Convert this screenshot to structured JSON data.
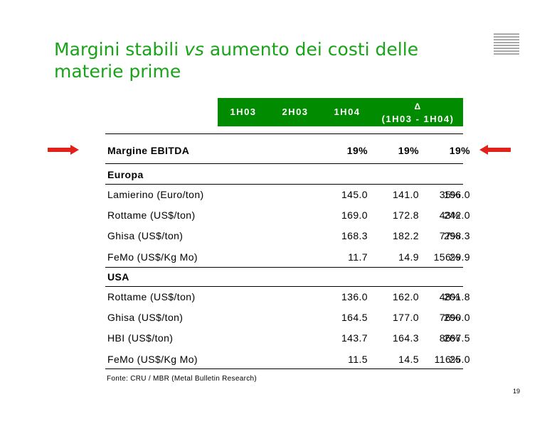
{
  "slide": {
    "title_part1": "Margini stabili ",
    "title_vs": "vs",
    "title_part2": " aumento dei costi delle materie prime",
    "page_number": "19",
    "source": "Fonte: CRU / MBR (Metal Bulletin Research)"
  },
  "table": {
    "headers": [
      "1H03",
      "2H03",
      "1H04"
    ],
    "delta_symbol": "Δ",
    "delta_range": "(1H03 - 1H04)",
    "ebitda": {
      "label": "Margine EBITDA",
      "values": [
        "19%",
        "19%",
        "19%"
      ],
      "delta": ""
    },
    "sections": [
      {
        "name": "Europa",
        "rows": [
          {
            "label": "Lamierino (Euro/ton)",
            "values": [
              "145.0",
              "141.0",
              "196.0"
            ],
            "delta": "35%"
          },
          {
            "label": "Rottame (US$/ton)",
            "values": [
              "169.0",
              "172.8",
              "242.0"
            ],
            "delta": "43%"
          },
          {
            "label": "Ghisa (US$/ton)",
            "values": [
              "168.3",
              "182.2",
              "298.3"
            ],
            "delta": "77%"
          },
          {
            "label": "FeMo (US$/Kg Mo)",
            "values": [
              "11.7",
              "14.9",
              "29.9"
            ],
            "delta": "156%"
          }
        ]
      },
      {
        "name": "USA",
        "rows": [
          {
            "label": "Rottame (US$/ton)",
            "values": [
              "136.0",
              "162.0",
              "201.8"
            ],
            "delta": "48%"
          },
          {
            "label": "Ghisa (US$/ton)",
            "values": [
              "164.5",
              "177.0",
              "290.0"
            ],
            "delta": "76%"
          },
          {
            "label": "HBI (US$/ton)",
            "values": [
              "143.7",
              "164.3",
              "267.5"
            ],
            "delta": "86%"
          },
          {
            "label": "FeMo (US$/Kg Mo)",
            "values": [
              "11.5",
              "14.5",
              "25.0"
            ],
            "delta": "116%"
          }
        ]
      }
    ]
  },
  "colors": {
    "title": "#1aa31a",
    "header_bg": "#008b00",
    "arrow": "#e0221b"
  }
}
